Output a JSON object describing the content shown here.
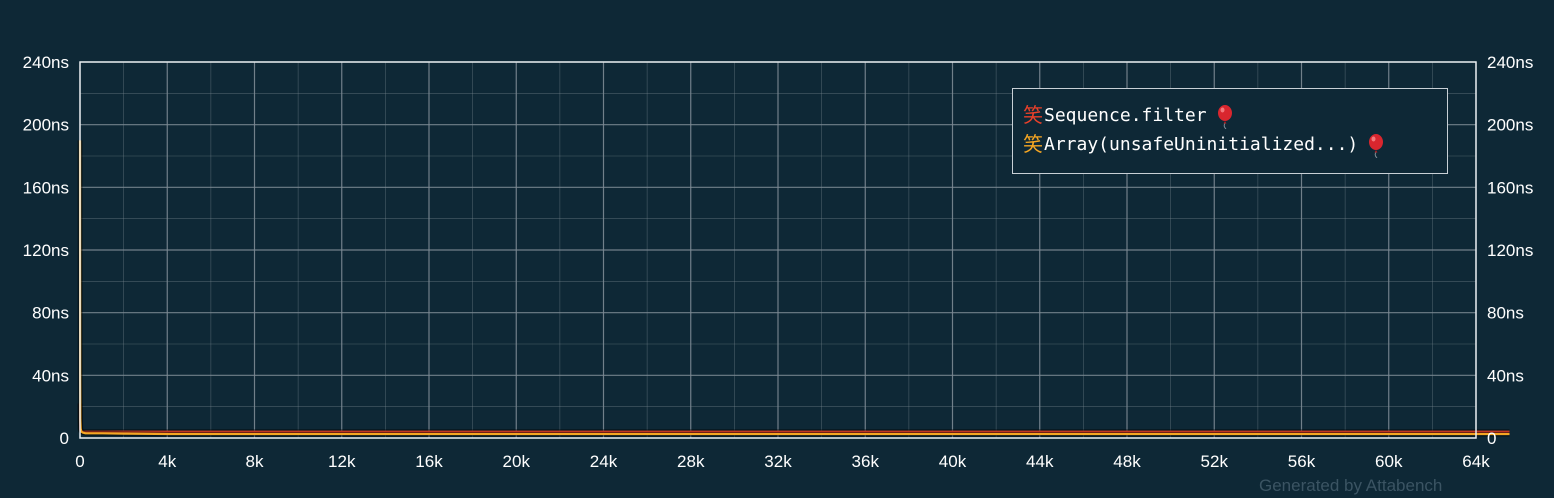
{
  "chart_data": {
    "type": "line",
    "title": "",
    "xlabel": "",
    "ylabel": "",
    "xlim": [
      0,
      64000
    ],
    "ylim": [
      0,
      240
    ],
    "x_ticks": [
      "0",
      "4k",
      "8k",
      "12k",
      "16k",
      "20k",
      "24k",
      "28k",
      "32k",
      "36k",
      "40k",
      "44k",
      "48k",
      "52k",
      "56k",
      "60k",
      "64k"
    ],
    "y_ticks": [
      "0",
      "40ns",
      "80ns",
      "120ns",
      "160ns",
      "200ns",
      "240ns"
    ],
    "grid": true,
    "legend_position": "top-right",
    "series": [
      {
        "name": "Sequence.filter",
        "color": "#e8402a",
        "x": [
          1,
          2,
          4,
          8,
          16,
          32,
          64,
          128,
          256,
          512,
          1024,
          2048,
          4096,
          8192,
          16384,
          32768,
          65536
        ],
        "values": [
          22,
          12,
          8,
          6,
          5,
          4.5,
          4.2,
          4,
          4,
          4,
          4,
          4,
          4,
          4,
          4,
          4,
          4
        ]
      },
      {
        "name": "Array(unsafeUninitialized...)",
        "color": "#f5a623",
        "x": [
          1,
          2,
          4,
          8,
          16,
          32,
          64,
          128,
          256,
          512,
          1024,
          2048,
          4096,
          8192,
          16384,
          32768,
          65536
        ],
        "values": [
          190,
          188,
          120,
          40,
          12,
          6,
          4,
          3.5,
          3,
          3,
          3,
          2.8,
          2.5,
          2.5,
          2.5,
          2.5,
          2.5
        ]
      }
    ]
  },
  "legend": {
    "glyph": "笑",
    "items": [
      {
        "label": "Sequence.filter",
        "color": "#e8402a"
      },
      {
        "label": "Array(unsafeUninitialized...)",
        "color": "#f5a623"
      }
    ]
  },
  "colors": {
    "background": "#0e2836",
    "grid": "#7c8a93",
    "axis": "#e6ebee"
  },
  "footer": {
    "text": "Generated by Attabench"
  }
}
